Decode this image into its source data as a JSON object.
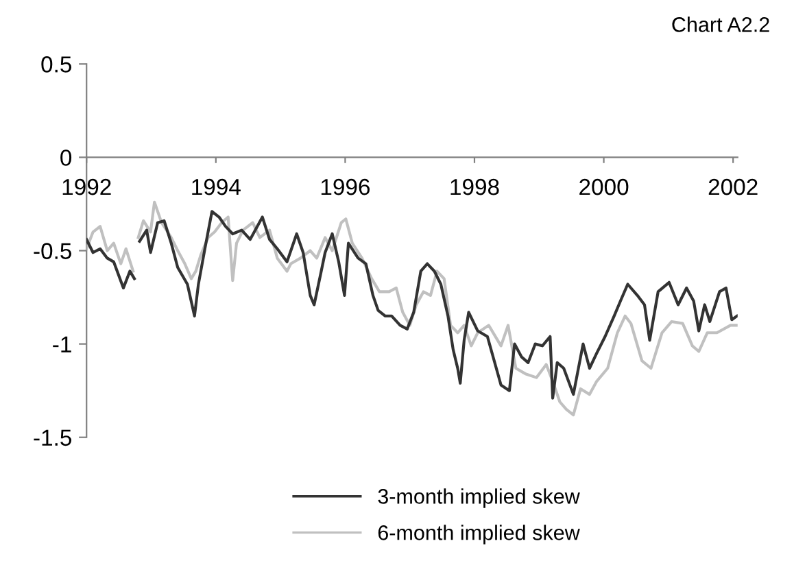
{
  "chart_data": {
    "type": "line",
    "title": "Chart A2.2",
    "xlim": [
      1992,
      2002.07
    ],
    "xticks": [
      1992,
      1994,
      1996,
      1998,
      2000,
      2002
    ],
    "ylim": [
      -1.5,
      0.5
    ],
    "yticks": [
      0.5,
      0,
      -0.5,
      -1,
      -1.5
    ],
    "grid": false,
    "legend": "bottom",
    "marker": "none",
    "line_style": "solid",
    "series": [
      {
        "name": "3-month implied skew",
        "color": "#333333",
        "x": [
          1992.0,
          1992.1,
          1992.21,
          1992.32,
          1992.42,
          1992.57,
          1992.67,
          1992.74,
          1992.79,
          1992.82,
          1992.93,
          1992.99,
          1993.1,
          1993.2,
          1993.31,
          1993.41,
          1993.56,
          1993.67,
          1993.73,
          1993.83,
          1993.94,
          1994.05,
          1994.15,
          1994.26,
          1994.4,
          1994.53,
          1994.72,
          1994.83,
          1994.95,
          1995.1,
          1995.25,
          1995.35,
          1995.46,
          1995.52,
          1995.63,
          1995.69,
          1995.8,
          1995.9,
          1995.99,
          1996.05,
          1996.2,
          1996.32,
          1996.43,
          1996.51,
          1996.62,
          1996.72,
          1996.85,
          1996.96,
          1997.06,
          1997.17,
          1997.27,
          1997.38,
          1997.48,
          1997.59,
          1997.67,
          1997.74,
          1997.78,
          1997.84,
          1997.91,
          1998.05,
          1998.2,
          1998.41,
          1998.54,
          1998.62,
          1998.73,
          1998.83,
          1998.94,
          1999.05,
          1999.17,
          1999.21,
          1999.28,
          1999.38,
          1999.53,
          1999.68,
          1999.78,
          1999.89,
          2000.02,
          2000.16,
          2000.27,
          2000.37,
          2000.52,
          2000.63,
          2000.71,
          2000.84,
          2001.01,
          2001.15,
          2001.28,
          2001.39,
          2001.47,
          2001.56,
          2001.64,
          2001.79,
          2001.89,
          2001.98,
          2002.06
        ],
        "values": [
          -0.44,
          -0.51,
          -0.49,
          -0.54,
          -0.56,
          -0.7,
          -0.61,
          -0.65,
          null,
          -0.45,
          -0.39,
          -0.51,
          -0.35,
          -0.34,
          -0.46,
          -0.59,
          -0.68,
          -0.85,
          -0.68,
          -0.49,
          -0.29,
          -0.32,
          -0.37,
          -0.41,
          -0.39,
          -0.44,
          -0.32,
          -0.44,
          -0.49,
          -0.56,
          -0.41,
          -0.51,
          -0.74,
          -0.79,
          -0.61,
          -0.51,
          -0.41,
          -0.56,
          -0.74,
          -0.46,
          -0.54,
          -0.57,
          -0.74,
          -0.82,
          -0.85,
          -0.85,
          -0.9,
          -0.92,
          -0.83,
          -0.61,
          -0.57,
          -0.61,
          -0.68,
          -0.85,
          -1.03,
          -1.13,
          -1.21,
          -0.98,
          -0.83,
          -0.93,
          -0.96,
          -1.22,
          -1.25,
          -1.0,
          -1.07,
          -1.1,
          -1.0,
          -1.01,
          -0.96,
          -1.29,
          -1.1,
          -1.13,
          -1.27,
          -1.0,
          -1.13,
          -1.05,
          -0.96,
          -0.85,
          -0.76,
          -0.68,
          -0.74,
          -0.79,
          -0.98,
          -0.72,
          -0.67,
          -0.79,
          -0.7,
          -0.77,
          -0.93,
          -0.79,
          -0.88,
          -0.72,
          -0.7,
          -0.87,
          -0.85
        ]
      },
      {
        "name": "6-month implied skew",
        "color": "#c0c0c0",
        "x": [
          1992.0,
          1992.1,
          1992.21,
          1992.32,
          1992.42,
          1992.53,
          1992.61,
          1992.72,
          1992.77,
          1992.8,
          1992.88,
          1992.99,
          1993.05,
          1993.16,
          1993.31,
          1993.41,
          1993.52,
          1993.62,
          1993.69,
          1993.77,
          1993.88,
          1993.98,
          1994.09,
          1994.19,
          1994.26,
          1994.32,
          1994.42,
          1994.57,
          1994.68,
          1994.83,
          1994.95,
          1995.1,
          1995.16,
          1995.31,
          1995.46,
          1995.56,
          1995.69,
          1995.8,
          1995.94,
          1996.01,
          1996.11,
          1996.26,
          1996.41,
          1996.53,
          1996.68,
          1996.79,
          1996.89,
          1997.0,
          1997.1,
          1997.21,
          1997.32,
          1997.42,
          1997.53,
          1997.63,
          1997.74,
          1997.84,
          1997.95,
          1998.05,
          1998.22,
          1998.41,
          1998.52,
          1998.64,
          1998.79,
          1998.96,
          1999.11,
          1999.21,
          1999.32,
          1999.42,
          1999.53,
          1999.64,
          1999.78,
          1999.89,
          2000.06,
          2000.21,
          2000.33,
          2000.42,
          2000.59,
          2000.73,
          2000.9,
          2001.05,
          2001.22,
          2001.37,
          2001.47,
          2001.6,
          2001.75,
          2001.96,
          2002.06
        ],
        "values": [
          -0.49,
          -0.4,
          -0.37,
          -0.5,
          -0.46,
          -0.57,
          -0.49,
          -0.61,
          null,
          -0.43,
          -0.34,
          -0.4,
          -0.24,
          -0.35,
          -0.43,
          -0.5,
          -0.57,
          -0.65,
          -0.61,
          -0.52,
          -0.43,
          -0.4,
          -0.35,
          -0.32,
          -0.66,
          -0.46,
          -0.39,
          -0.35,
          -0.43,
          -0.39,
          -0.54,
          -0.61,
          -0.57,
          -0.54,
          -0.5,
          -0.54,
          -0.43,
          -0.5,
          -0.35,
          -0.33,
          -0.46,
          -0.54,
          -0.65,
          -0.72,
          -0.72,
          -0.7,
          -0.83,
          -0.9,
          -0.79,
          -0.72,
          -0.74,
          -0.61,
          -0.65,
          -0.9,
          -0.94,
          -0.9,
          -1.01,
          -0.94,
          -0.9,
          -1.01,
          -0.9,
          -1.13,
          -1.16,
          -1.18,
          -1.11,
          -1.2,
          -1.31,
          -1.35,
          -1.38,
          -1.24,
          -1.27,
          -1.2,
          -1.13,
          -0.94,
          -0.85,
          -0.89,
          -1.09,
          -1.13,
          -0.94,
          -0.88,
          -0.89,
          -1.01,
          -1.04,
          -0.94,
          -0.94,
          -0.9,
          -0.9
        ]
      }
    ]
  }
}
